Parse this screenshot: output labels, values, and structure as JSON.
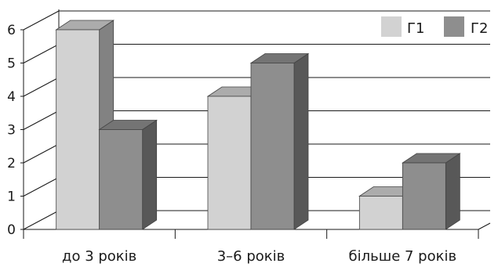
{
  "chart_data": {
    "type": "bar",
    "title": "",
    "xlabel": "",
    "ylabel": "",
    "categories": [
      "до 3 років",
      "3–6 років",
      "більше 7 років"
    ],
    "series": [
      {
        "name": "Г1",
        "values": [
          6,
          4,
          1
        ]
      },
      {
        "name": "Г2",
        "values": [
          3,
          5,
          2
        ]
      }
    ],
    "ylim": [
      0,
      6
    ],
    "yticks": [
      "0",
      "1",
      "2",
      "3",
      "4",
      "5",
      "6"
    ],
    "grid": true,
    "legend_position": "top-right",
    "style": "3d-perspective",
    "colors": {
      "Г1": "#d2d2d2",
      "Г2": "#8e8e8e"
    }
  }
}
